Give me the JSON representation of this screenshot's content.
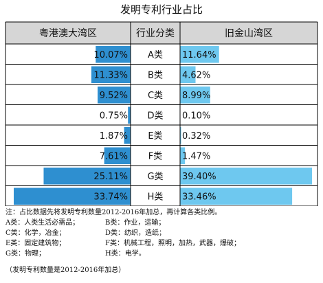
{
  "chart_data": {
    "type": "bar",
    "title": "发明专利行业占比",
    "left_series_header": "粤港澳大湾区",
    "category_header": "行业分类",
    "right_series_header": "旧金山湾区",
    "categories": [
      "A类",
      "B类",
      "C类",
      "D类",
      "E类",
      "F类",
      "G类",
      "H类"
    ],
    "series": [
      {
        "name": "粤港澳大湾区",
        "values": [
          10.07,
          11.33,
          9.52,
          0.75,
          1.87,
          7.61,
          25.11,
          33.74
        ],
        "labels": [
          "10.07%",
          "11.33%",
          "9.52%",
          "0.75%",
          "1.87%",
          "7.61%",
          "25.11%",
          "33.74%"
        ]
      },
      {
        "name": "旧金山湾区",
        "values": [
          11.64,
          4.62,
          8.99,
          0.1,
          0.32,
          1.47,
          39.4,
          33.46
        ],
        "labels": [
          "11.64%",
          "4.62%",
          "8.99%",
          "0.10%",
          "0.32%",
          "1.47%",
          "39.40%",
          "33.46%"
        ]
      }
    ],
    "colors": {
      "left": "#2e8fd0",
      "right": "#6ec8ef",
      "header_bg": "#d6d6d6"
    },
    "legend": "none",
    "grid": false
  },
  "notes": {
    "main": "注：占比数据先将发明专利数量2012-2016年加总，再计算各类比例。",
    "rows": [
      [
        "A类：人类生活必需品；",
        "B类：作业，运输；"
      ],
      [
        "C类：化学，冶金；",
        "D类：纺织，造纸；"
      ],
      [
        "E类：固定建筑物；",
        "F类：机械工程，照明，加热，武器，爆破；"
      ],
      [
        "G类：物理；",
        "H类：电学。"
      ]
    ],
    "footer": "（发明专利数量是2012-2016年加总）"
  }
}
